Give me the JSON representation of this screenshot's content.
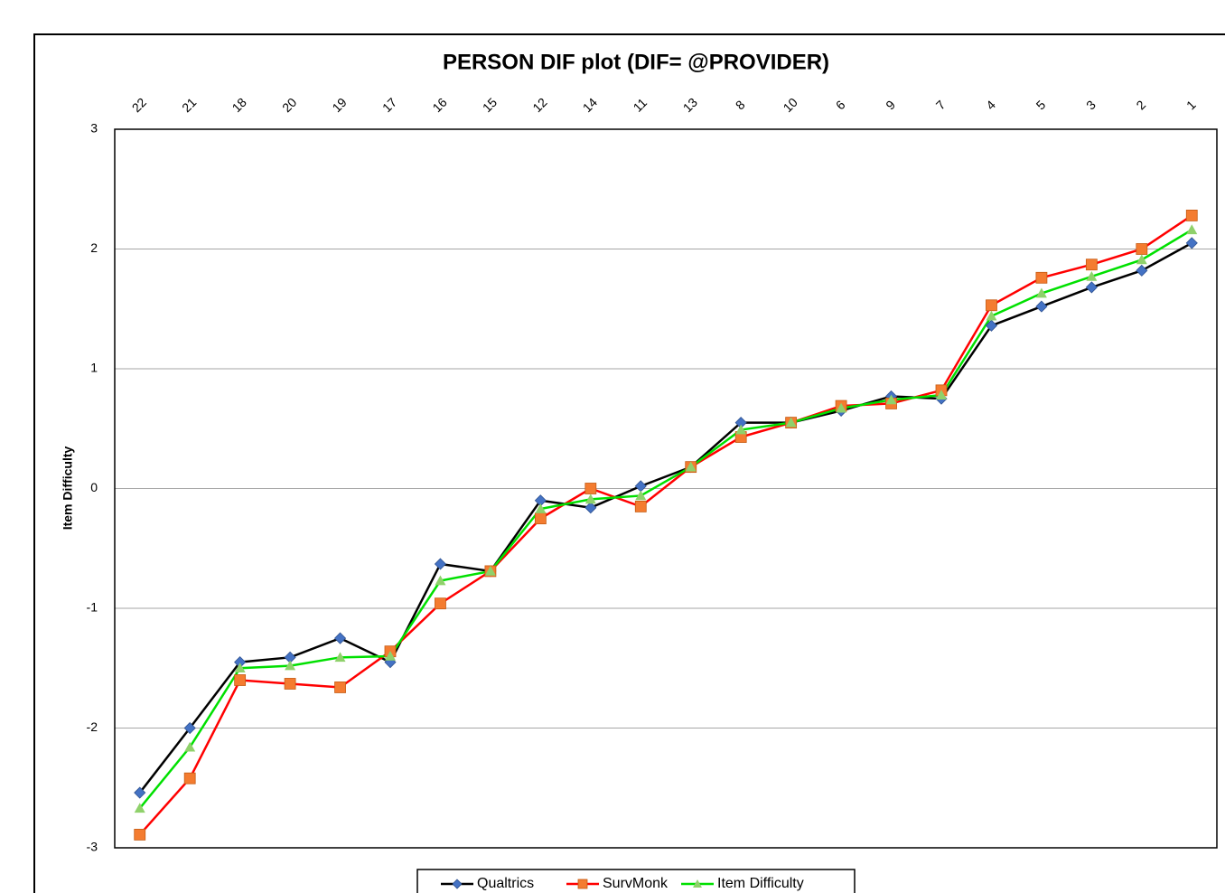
{
  "chart_data": {
    "type": "line",
    "title": "PERSON DIF plot (DIF= @PROVIDER)",
    "y_label": "Item Difficulty",
    "categories": [
      "22",
      "21",
      "18",
      "20",
      "19",
      "17",
      "16",
      "15",
      "12",
      "14",
      "11",
      "13",
      "8",
      "10",
      "6",
      "9",
      "7",
      "4",
      "5",
      "3",
      "2",
      "1"
    ],
    "series": [
      {
        "name": "Qualtrics",
        "color": "#000000",
        "marker_color": "#4472c4",
        "marker": "diamond",
        "values": [
          -2.54,
          -2.0,
          -1.45,
          -1.41,
          -1.25,
          -1.45,
          -0.63,
          -0.69,
          -0.1,
          -0.16,
          0.02,
          0.18,
          0.55,
          0.55,
          0.65,
          0.77,
          0.75,
          1.36,
          1.52,
          1.68,
          1.82,
          2.05
        ]
      },
      {
        "name": "SurvMonk",
        "color": "#ff0000",
        "marker_color": "#f47c30",
        "marker": "square",
        "values": [
          -2.89,
          -2.42,
          -1.6,
          -1.63,
          -1.66,
          -1.36,
          -0.96,
          -0.69,
          -0.25,
          0.0,
          -0.15,
          0.18,
          0.43,
          0.55,
          0.69,
          0.71,
          0.82,
          1.53,
          1.76,
          1.87,
          2.0,
          2.28
        ]
      },
      {
        "name": "Item Difficulty",
        "color": "#00e000",
        "marker_color": "#8fd16b",
        "marker": "triangle",
        "values": [
          -2.67,
          -2.16,
          -1.5,
          -1.48,
          -1.41,
          -1.4,
          -0.77,
          -0.69,
          -0.17,
          -0.09,
          -0.06,
          0.18,
          0.49,
          0.55,
          0.67,
          0.74,
          0.78,
          1.44,
          1.63,
          1.77,
          1.91,
          2.16
        ]
      }
    ],
    "ylim": [
      -3,
      3
    ],
    "yticks": [
      -3,
      -2,
      -1,
      0,
      1,
      2,
      3
    ],
    "grid": true,
    "legend": "bottom"
  }
}
